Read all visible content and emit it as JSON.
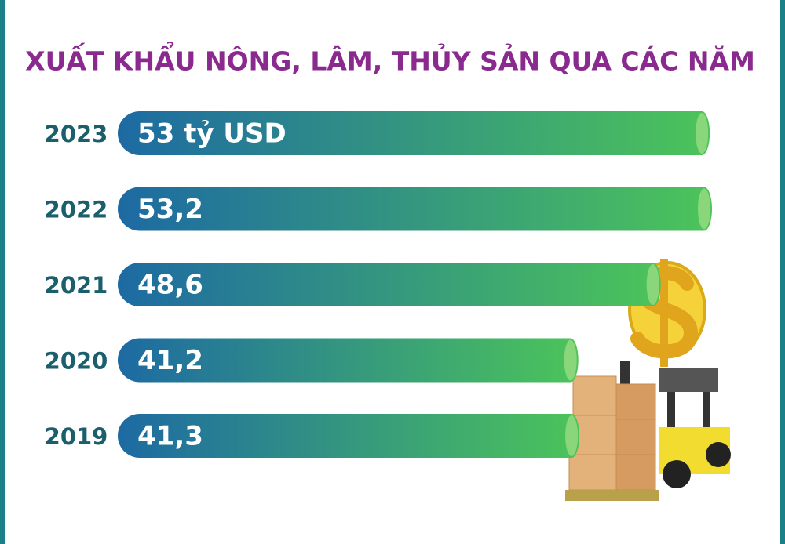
{
  "chart_data": {
    "type": "hbar",
    "title": "XUẤT KHẨU NÔNG, LÂM, THỦY SẢN QUA CÁC NĂM",
    "categories": [
      "2023",
      "2022",
      "2021",
      "2020",
      "2019"
    ],
    "values": [
      53,
      53.2,
      48.6,
      41.2,
      41.3
    ],
    "value_labels": [
      "53 tỷ USD",
      "53,2",
      "48,6",
      "41,2",
      "41,3"
    ],
    "colors": [
      "#1d6aa3",
      "#4cc45a"
    ]
  }
}
